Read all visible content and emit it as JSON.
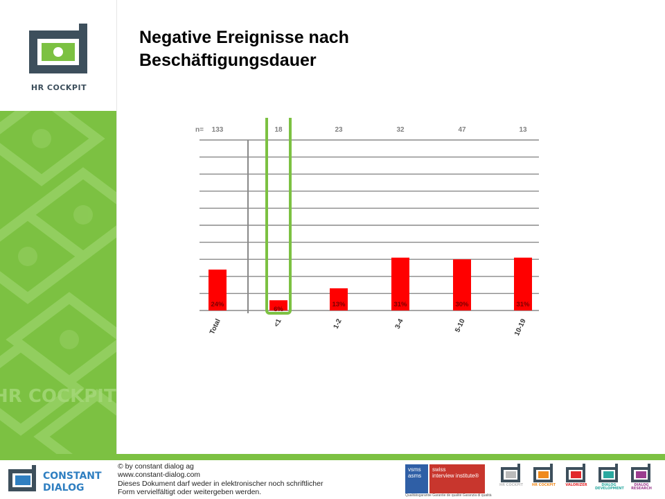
{
  "page": {
    "title_line1": "Negative Ereignisse nach",
    "title_line2": "Beschäftigungsdauer"
  },
  "logo": {
    "text": "HR COCKPIT",
    "icon": "hr-cockpit-logo-icon"
  },
  "chart_data": {
    "type": "bar",
    "categories": [
      "Total",
      "<1",
      "1-2",
      "3-4",
      "5-10",
      "10-19"
    ],
    "values": [
      24,
      6,
      13,
      31,
      30,
      31
    ],
    "value_labels": [
      "24%",
      "6%",
      "13%",
      "31%",
      "30%",
      "31%"
    ],
    "n_prefix": "n=",
    "n_values": [
      "133",
      "18",
      "23",
      "32",
      "47",
      "13"
    ],
    "ylim": [
      0,
      100
    ],
    "grid": true,
    "highlight_category": "<1",
    "colors": {
      "bar": "#ff0000",
      "highlight": "#7cc142",
      "grid": "#888888",
      "text": "#808080"
    }
  },
  "footer": {
    "logo_line1": "CONSTANT",
    "logo_line2": "DIALOG",
    "copyright": "© by constant dialog ag",
    "url": "www.constant-dialog.com",
    "notice_line1": "Dieses Dokument darf weder in elektronischer noch schriftlicher",
    "notice_line2": "Form vervielfältigt oder weitergeben werden.",
    "badge_vsms_line1": "vsms",
    "badge_vsms_line2": "asms",
    "badge_swiss_line1": "swiss",
    "badge_swiss_line2": "interview institute®",
    "badge_subtitle": "Qualitätsgarantie    Garantie de qualité    Garanzia di qualità",
    "products": [
      {
        "label": "HR COCKPIT",
        "color": "#bbbbbb",
        "icon": "hr-cockpit-icon"
      },
      {
        "label": "HR COCKPIT",
        "color": "#f08a1c",
        "icon": "hr-cockpit-icon"
      },
      {
        "label": "VALORIZER",
        "color": "#e2282c",
        "icon": "valorizer-icon"
      },
      {
        "label": "DIALOG DEVELOPMENT",
        "color": "#2aa9a0",
        "icon": "dialog-development-icon"
      },
      {
        "label": "DIALOG RESEARCH",
        "color": "#9b3c8f",
        "icon": "dialog-research-icon"
      }
    ]
  }
}
